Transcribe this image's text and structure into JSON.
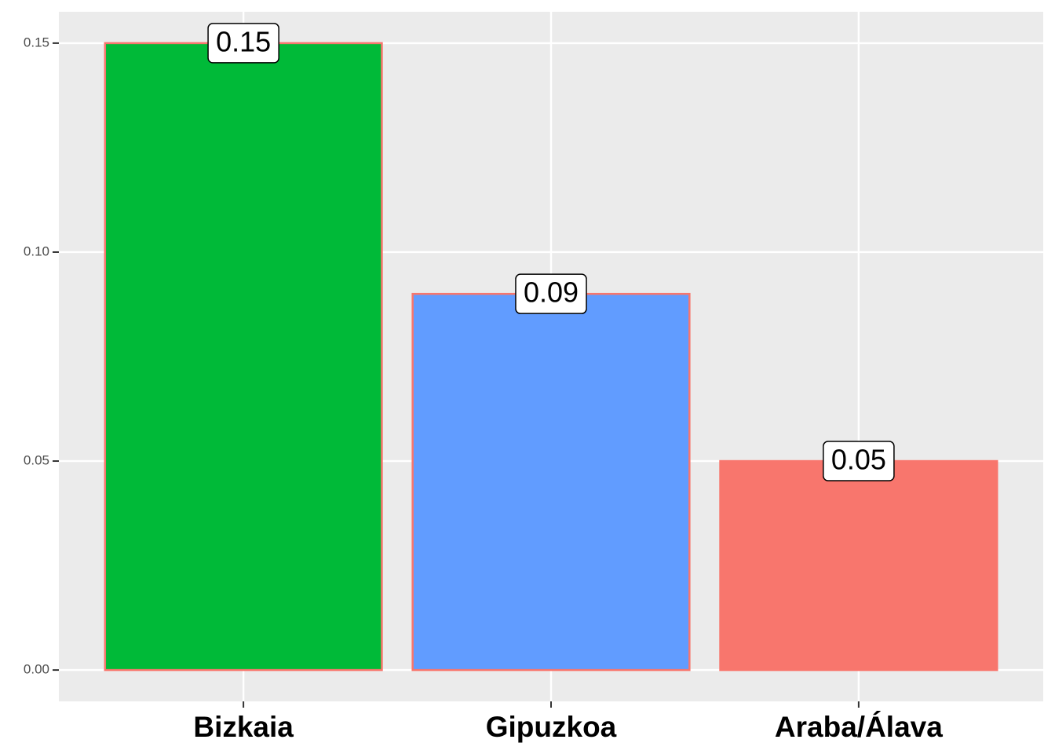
{
  "chart_data": {
    "type": "bar",
    "categories": [
      "Bizkaia",
      "Gipuzkoa",
      "Araba/Álava"
    ],
    "values": [
      0.15,
      0.09,
      0.05
    ],
    "colors": [
      "#00BA38",
      "#619CFF",
      "#F8766D"
    ],
    "outline": "#F8766D",
    "ylim": [
      -0.0075,
      0.1575
    ],
    "yticks": [
      {
        "value": 0,
        "label": "0.00"
      },
      0.05,
      {
        "value": 0.1,
        "label": "0.10"
      },
      0.15
    ],
    "grid": true
  }
}
